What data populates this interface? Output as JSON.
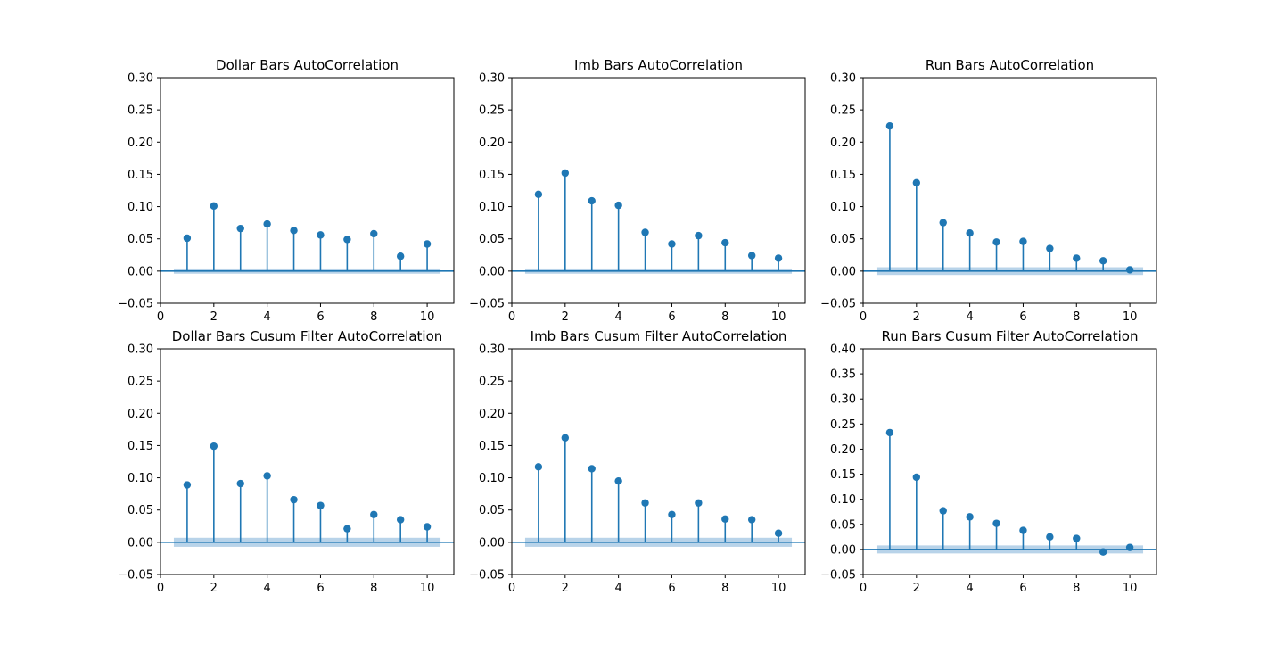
{
  "colors": {
    "stem": "#1f77b4",
    "confidence_band": "#a6c8e4",
    "axis": "#000000",
    "background": "#ffffff"
  },
  "chart_data": [
    {
      "type": "stem",
      "title": "Dollar Bars AutoCorrelation",
      "xlim": [
        0,
        11
      ],
      "ylim": [
        -0.05,
        0.3
      ],
      "xticks": [
        "0",
        "2",
        "4",
        "6",
        "8",
        "10"
      ],
      "yticks": [
        "−0.05",
        "0.00",
        "0.05",
        "0.10",
        "0.15",
        "0.20",
        "0.25",
        "0.30"
      ],
      "x": [
        1,
        2,
        3,
        4,
        5,
        6,
        7,
        8,
        9,
        10
      ],
      "values": [
        0.051,
        0.101,
        0.066,
        0.073,
        0.063,
        0.056,
        0.049,
        0.058,
        0.023,
        0.042
      ],
      "confidence_band": {
        "x_range": [
          0.5,
          10.5
        ],
        "y_range": [
          -0.004,
          0.004
        ]
      },
      "grid": false
    },
    {
      "type": "stem",
      "title": "Imb Bars AutoCorrelation",
      "xlim": [
        0,
        11
      ],
      "ylim": [
        -0.05,
        0.3
      ],
      "xticks": [
        "0",
        "2",
        "4",
        "6",
        "8",
        "10"
      ],
      "yticks": [
        "−0.05",
        "0.00",
        "0.05",
        "0.10",
        "0.15",
        "0.20",
        "0.25",
        "0.30"
      ],
      "x": [
        1,
        2,
        3,
        4,
        5,
        6,
        7,
        8,
        9,
        10
      ],
      "values": [
        0.119,
        0.152,
        0.109,
        0.102,
        0.06,
        0.042,
        0.055,
        0.044,
        0.024,
        0.02
      ],
      "confidence_band": {
        "x_range": [
          0.5,
          10.5
        ],
        "y_range": [
          -0.004,
          0.004
        ]
      },
      "grid": false
    },
    {
      "type": "stem",
      "title": "Run Bars AutoCorrelation",
      "xlim": [
        0,
        11
      ],
      "ylim": [
        -0.05,
        0.3
      ],
      "xticks": [
        "0",
        "2",
        "4",
        "6",
        "8",
        "10"
      ],
      "yticks": [
        "−0.05",
        "0.00",
        "0.05",
        "0.10",
        "0.15",
        "0.20",
        "0.25",
        "0.30"
      ],
      "x": [
        1,
        2,
        3,
        4,
        5,
        6,
        7,
        8,
        9,
        10
      ],
      "values": [
        0.225,
        0.137,
        0.075,
        0.059,
        0.045,
        0.046,
        0.035,
        0.02,
        0.016,
        0.002
      ],
      "confidence_band": {
        "x_range": [
          0.5,
          10.5
        ],
        "y_range": [
          -0.006,
          0.006
        ]
      },
      "grid": false
    },
    {
      "type": "stem",
      "title": "Dollar Bars Cusum Filter AutoCorrelation",
      "xlim": [
        0,
        11
      ],
      "ylim": [
        -0.05,
        0.3
      ],
      "xticks": [
        "0",
        "2",
        "4",
        "6",
        "8",
        "10"
      ],
      "yticks": [
        "−0.05",
        "0.00",
        "0.05",
        "0.10",
        "0.15",
        "0.20",
        "0.25",
        "0.30"
      ],
      "x": [
        1,
        2,
        3,
        4,
        5,
        6,
        7,
        8,
        9,
        10
      ],
      "values": [
        0.089,
        0.149,
        0.091,
        0.103,
        0.066,
        0.057,
        0.021,
        0.043,
        0.035,
        0.024
      ],
      "confidence_band": {
        "x_range": [
          0.5,
          10.5
        ],
        "y_range": [
          -0.007,
          0.007
        ]
      },
      "grid": false
    },
    {
      "type": "stem",
      "title": "Imb Bars Cusum Filter AutoCorrelation",
      "xlim": [
        0,
        11
      ],
      "ylim": [
        -0.05,
        0.3
      ],
      "xticks": [
        "0",
        "2",
        "4",
        "6",
        "8",
        "10"
      ],
      "yticks": [
        "−0.05",
        "0.00",
        "0.05",
        "0.10",
        "0.15",
        "0.20",
        "0.25",
        "0.30"
      ],
      "x": [
        1,
        2,
        3,
        4,
        5,
        6,
        7,
        8,
        9,
        10
      ],
      "values": [
        0.117,
        0.162,
        0.114,
        0.095,
        0.061,
        0.043,
        0.061,
        0.036,
        0.035,
        0.014
      ],
      "confidence_band": {
        "x_range": [
          0.5,
          10.5
        ],
        "y_range": [
          -0.007,
          0.007
        ]
      },
      "grid": false
    },
    {
      "type": "stem",
      "title": "Run Bars Cusum Filter AutoCorrelation",
      "xlim": [
        0,
        11
      ],
      "ylim": [
        -0.05,
        0.4
      ],
      "xticks": [
        "0",
        "2",
        "4",
        "6",
        "8",
        "10"
      ],
      "yticks": [
        "−0.05",
        "0.00",
        "0.05",
        "0.10",
        "0.15",
        "0.20",
        "0.25",
        "0.30",
        "0.35",
        "0.40"
      ],
      "x": [
        1,
        2,
        3,
        4,
        5,
        6,
        7,
        8,
        9,
        10
      ],
      "values": [
        0.233,
        0.144,
        0.077,
        0.065,
        0.052,
        0.038,
        0.025,
        0.022,
        -0.005,
        0.004
      ],
      "confidence_band": {
        "x_range": [
          0.5,
          10.5
        ],
        "y_range": [
          -0.008,
          0.008
        ]
      },
      "grid": false
    }
  ]
}
